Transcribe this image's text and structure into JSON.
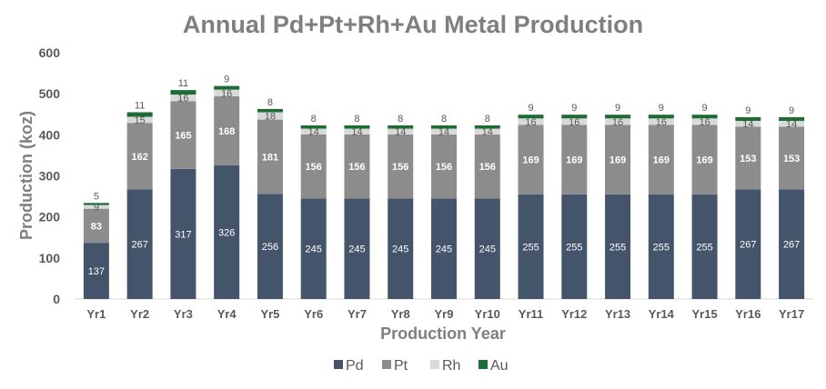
{
  "chart_data": {
    "type": "bar",
    "stacked": true,
    "title": "Annual Pd+Pt+Rh+Au Metal Production",
    "xlabel": "Production Year",
    "ylabel": "Production (koz)",
    "ylim": [
      0,
      600
    ],
    "yticks": [
      0,
      100,
      200,
      300,
      400,
      500,
      600
    ],
    "grid": false,
    "legend_position": "bottom",
    "categories": [
      "Yr1",
      "Yr2",
      "Yr3",
      "Yr4",
      "Yr5",
      "Yr6",
      "Yr7",
      "Yr8",
      "Yr9",
      "Yr10",
      "Yr11",
      "Yr12",
      "Yr13",
      "Yr14",
      "Yr15",
      "Yr16",
      "Yr17"
    ],
    "series": [
      {
        "name": "Pd",
        "color": "#44546a",
        "values": [
          137,
          267,
          317,
          326,
          256,
          245,
          245,
          245,
          245,
          245,
          255,
          255,
          255,
          255,
          255,
          267,
          267
        ]
      },
      {
        "name": "Pt",
        "color": "#8c8c8c",
        "values": [
          83,
          162,
          165,
          168,
          181,
          156,
          156,
          156,
          156,
          156,
          169,
          169,
          169,
          169,
          169,
          153,
          153
        ]
      },
      {
        "name": "Rh",
        "color": "#d9d9d9",
        "values": [
          9,
          15,
          16,
          16,
          18,
          14,
          14,
          14,
          14,
          14,
          16,
          16,
          16,
          16,
          16,
          14,
          14
        ]
      },
      {
        "name": "Au",
        "color": "#1e6b34",
        "values": [
          5,
          11,
          11,
          9,
          8,
          8,
          8,
          8,
          8,
          8,
          9,
          9,
          9,
          9,
          9,
          9,
          9
        ]
      }
    ]
  }
}
